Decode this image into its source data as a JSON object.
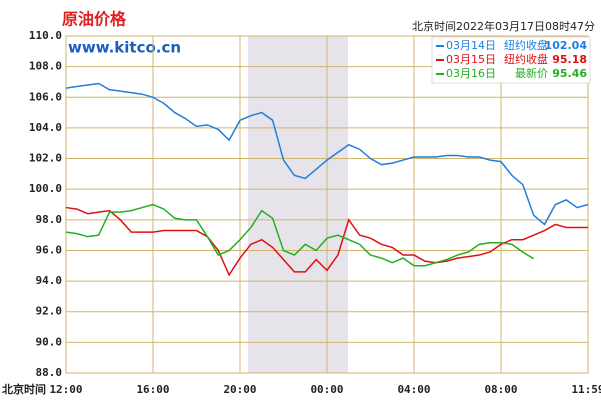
{
  "chart_data": {
    "type": "line",
    "title": "原油价格",
    "source": "www.kitco.cn",
    "timestamp": "北京时间2022年03月17日08时47分",
    "x_label": "北京时间",
    "categories": [
      "12:00",
      null,
      null,
      null,
      null,
      null,
      null,
      null,
      "16:00",
      null,
      null,
      null,
      null,
      null,
      null,
      null,
      "20:00",
      null,
      null,
      null,
      null,
      null,
      null,
      null,
      "00:00",
      null,
      null,
      null,
      null,
      null,
      null,
      null,
      "04:00",
      null,
      null,
      null,
      null,
      null,
      null,
      null,
      "08:00",
      null,
      null,
      null,
      null,
      null,
      null,
      null,
      "11:59"
    ],
    "ylim": [
      88,
      110
    ],
    "yticks": [
      {
        "value": 88,
        "label": "88.0"
      },
      {
        "value": 90,
        "label": "90.0"
      },
      {
        "value": 92,
        "label": "92.0"
      },
      {
        "value": 94,
        "label": "94.0"
      },
      {
        "value": 96,
        "label": "96.0"
      },
      {
        "value": 98,
        "label": "98.0"
      },
      {
        "value": 100,
        "label": "100.0"
      },
      {
        "value": 102,
        "label": "102.0"
      },
      {
        "value": 104,
        "label": "104.0"
      },
      {
        "value": 106,
        "label": "106.0"
      },
      {
        "value": 108,
        "label": "108.0"
      },
      {
        "value": 110,
        "label": "110.0"
      }
    ],
    "grid": true,
    "legend": "upper right",
    "series": [
      {
        "name": "03月14日",
        "label": "纽约收盘",
        "last": 102.04,
        "color": "#1f7fdc",
        "values": [
          106.6,
          106.7,
          106.8,
          106.9,
          106.5,
          106.4,
          106.3,
          106.2,
          106.0,
          105.6,
          105.0,
          104.6,
          104.1,
          104.2,
          103.9,
          103.2,
          104.5,
          104.8,
          105.0,
          104.5,
          101.9,
          100.9,
          100.7,
          101.3,
          101.9,
          102.4,
          102.9,
          102.6,
          102.0,
          101.6,
          101.7,
          101.9,
          102.1,
          102.1,
          102.1,
          102.2,
          102.2,
          102.1,
          102.1,
          101.9,
          101.8,
          100.9,
          100.3,
          98.3,
          97.7,
          99.0,
          99.3,
          98.8,
          99.0
        ]
      },
      {
        "name": "03月15日",
        "label": "纽约收盘",
        "last": 95.18,
        "color": "#e01010",
        "values": [
          98.8,
          98.7,
          98.4,
          98.5,
          98.6,
          98.0,
          97.2,
          97.2,
          97.2,
          97.3,
          97.3,
          97.3,
          97.3,
          96.9,
          96.0,
          94.4,
          95.5,
          96.4,
          96.7,
          96.2,
          95.4,
          94.6,
          94.6,
          95.4,
          94.7,
          95.7,
          98.0,
          97.0,
          96.8,
          96.4,
          96.2,
          95.7,
          95.7,
          95.3,
          95.2,
          95.3,
          95.5,
          95.6,
          95.7,
          95.9,
          96.4,
          96.7,
          96.7,
          97.0,
          97.3,
          97.7,
          97.5,
          97.5,
          97.5
        ]
      },
      {
        "name": "03月16日",
        "label": "最新价",
        "last": 95.46,
        "color": "#20b020",
        "values": [
          97.2,
          97.1,
          96.9,
          97.0,
          98.5,
          98.5,
          98.6,
          98.8,
          99.0,
          98.7,
          98.1,
          98.0,
          98.0,
          96.9,
          95.7,
          96.0,
          96.7,
          97.5,
          98.6,
          98.1,
          96.0,
          95.7,
          96.4,
          96.0,
          96.8,
          97.0,
          96.7,
          96.4,
          95.7,
          95.5,
          95.2,
          95.5,
          95.0,
          95.0,
          95.2,
          95.4,
          95.7,
          95.9,
          96.4,
          96.5,
          96.5,
          96.4,
          95.9,
          95.46,
          null,
          null,
          null,
          null,
          null
        ]
      }
    ]
  }
}
